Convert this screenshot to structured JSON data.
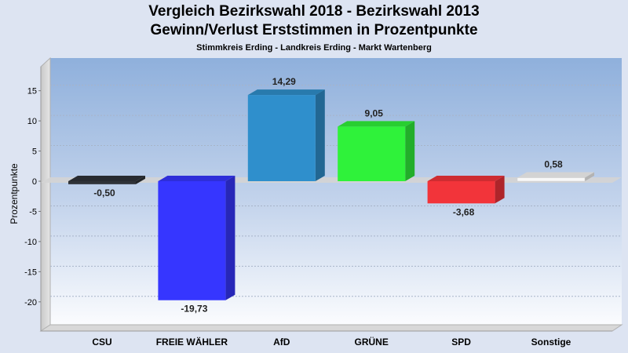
{
  "chart_data": {
    "type": "bar",
    "title": "Vergleich Bezirkswahl 2018 - Bezirkswahl 2013",
    "subtitle": "Gewinn/Verlust Erststimmen in Prozentpunkte",
    "caption": "Stimmkreis Erding - Landkreis Erding - Markt Wartenberg",
    "ylabel": "Prozentpunkte",
    "xlabel": "",
    "categories": [
      "CSU",
      "FREIE WÄHLER",
      "AfD",
      "GRÜNE",
      "SPD",
      "Sonstige"
    ],
    "values": [
      -0.5,
      -19.73,
      14.29,
      9.05,
      -3.68,
      0.58
    ],
    "value_labels": [
      "-0,50",
      "-19,73",
      "14,29",
      "9,05",
      "-3,68",
      "0,58"
    ],
    "colors": [
      "#2f3338",
      "#3636ff",
      "#2f8fcc",
      "#2ff23a",
      "#f2343a",
      "#f8f8f8"
    ],
    "yticks": [
      15,
      10,
      5,
      0,
      -5,
      -10,
      -15,
      -20
    ],
    "ylim": [
      -24,
      20
    ],
    "grid": true,
    "legend": "none"
  }
}
